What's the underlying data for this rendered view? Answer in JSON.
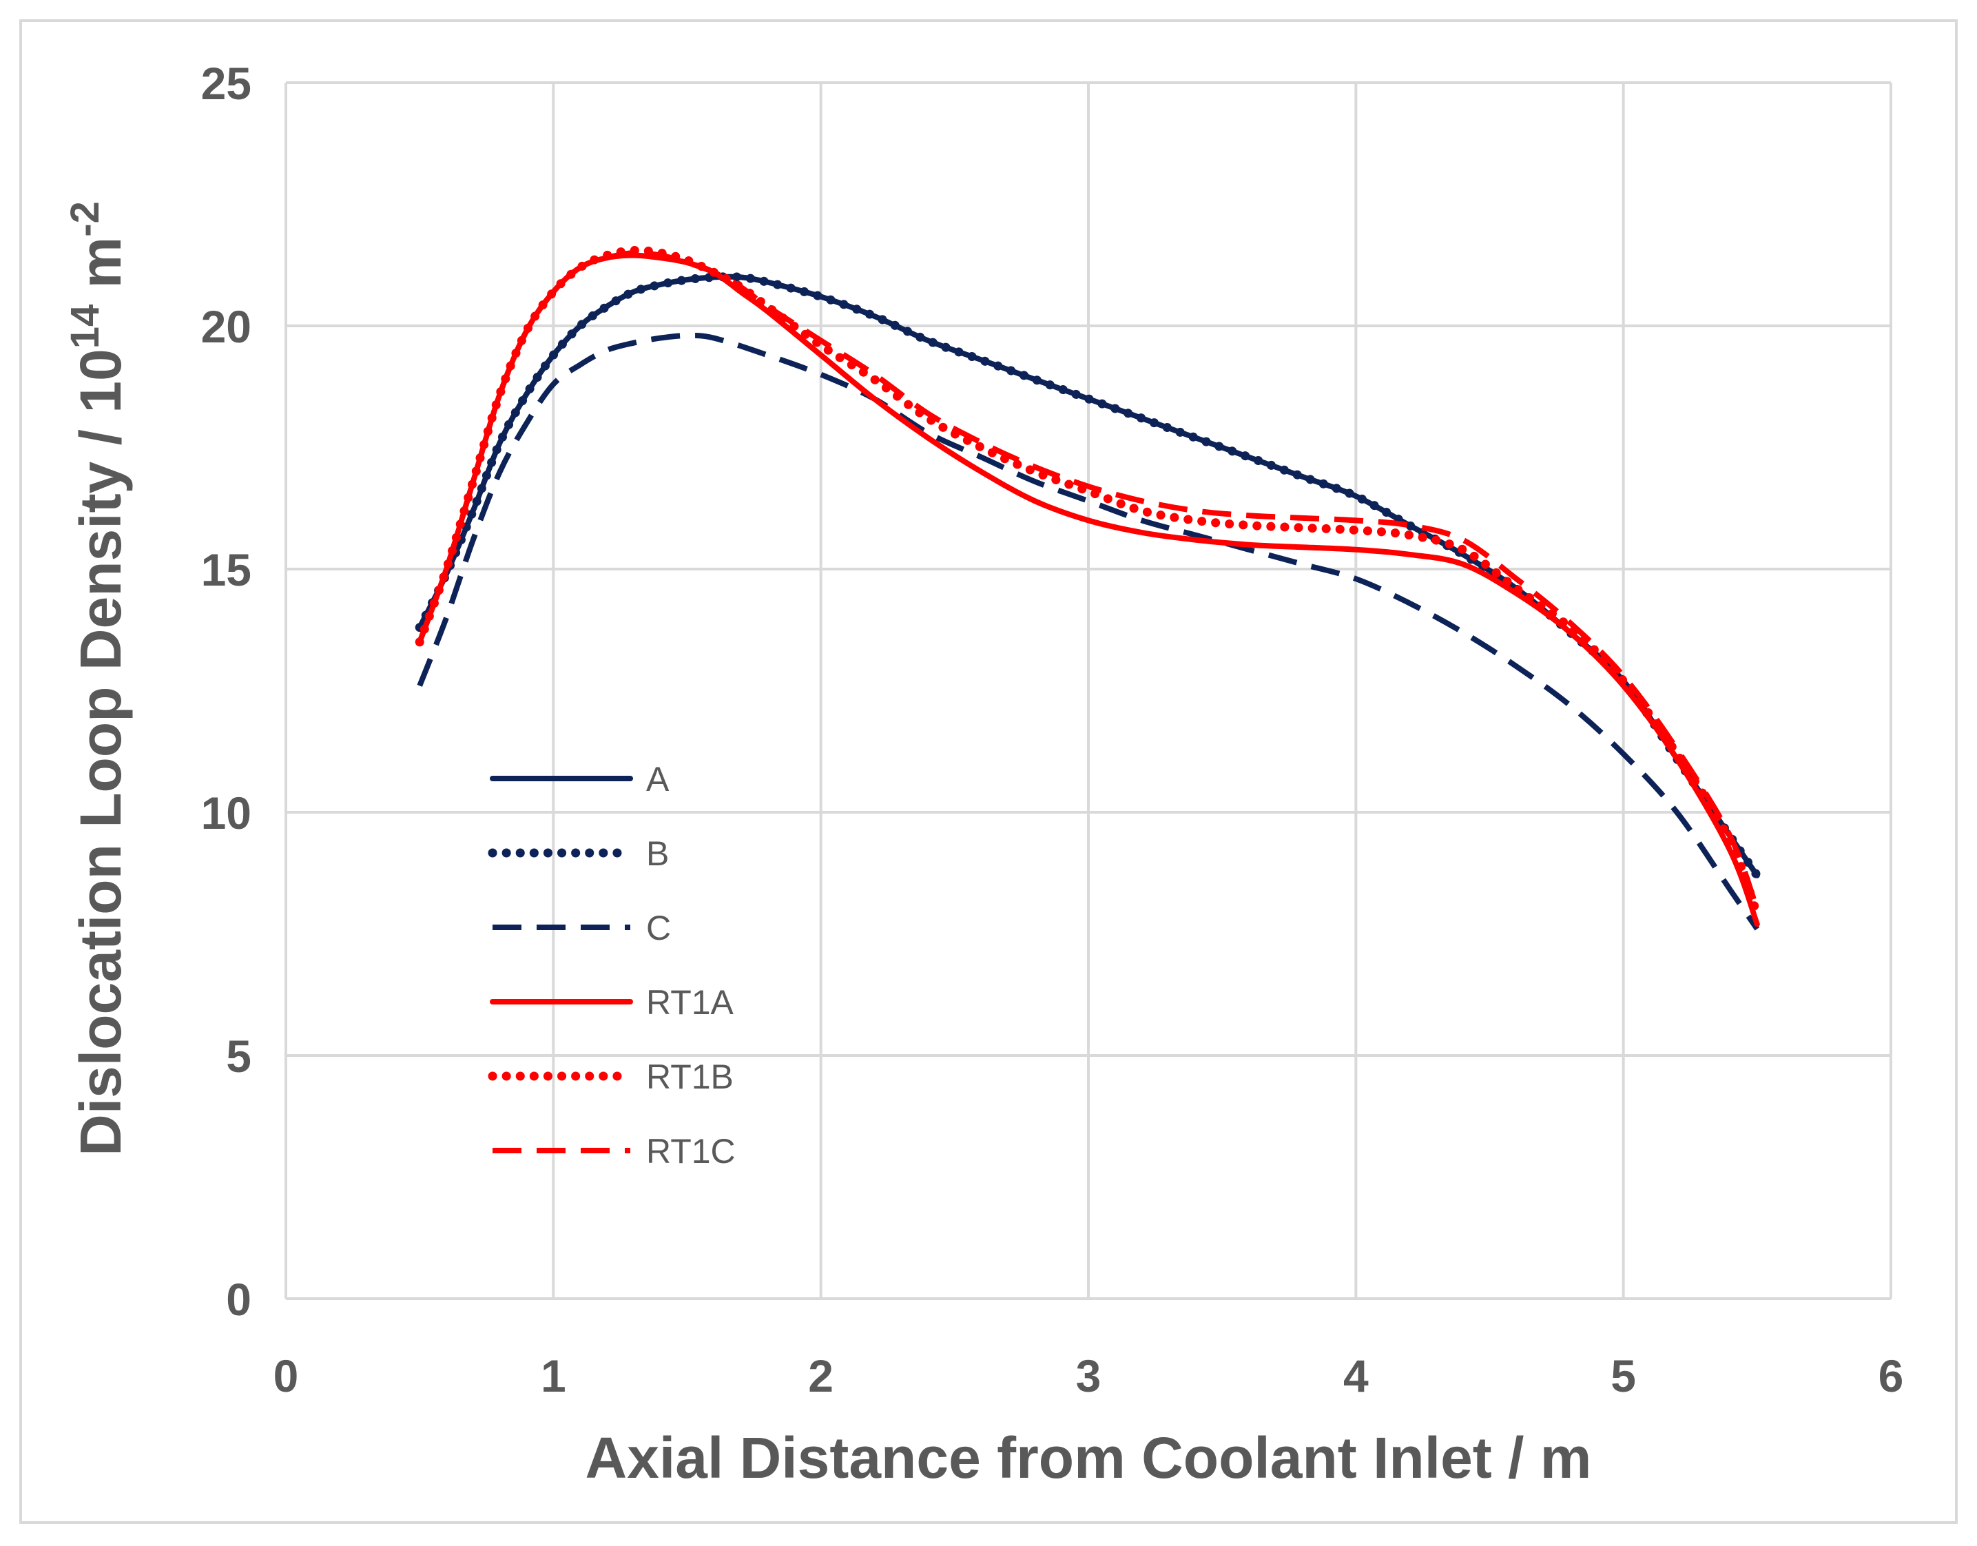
{
  "chart_data": {
    "type": "line",
    "title": "",
    "xlabel": "Axial Distance from Coolant Inlet / m",
    "ylabel": {
      "main": "Dislocation Loop Density / 10",
      "exp1": "14",
      "mid": " m",
      "exp2": "-2"
    },
    "xlim": [
      0,
      6
    ],
    "ylim": [
      0,
      25
    ],
    "xticks": [
      "0",
      "1",
      "2",
      "3",
      "4",
      "5",
      "6"
    ],
    "yticks": [
      "0",
      "5",
      "10",
      "15",
      "20",
      "25"
    ],
    "grid": true,
    "legend_position": "left-center",
    "series": [
      {
        "name": "A",
        "color": "#0d2257",
        "style": "solid",
        "x": [
          0.5,
          0.6,
          0.7,
          0.8,
          0.9,
          1.0,
          1.1,
          1.2,
          1.3,
          1.4,
          1.5,
          1.6,
          1.7,
          1.8,
          2.0,
          2.2,
          2.4,
          2.6,
          2.8,
          3.0,
          3.2,
          3.4,
          3.6,
          3.8,
          4.0,
          4.2,
          4.4,
          4.6,
          4.8,
          5.0,
          5.2,
          5.4,
          5.5
        ],
        "y": [
          13.8,
          14.9,
          16.2,
          17.6,
          18.6,
          19.4,
          20.0,
          20.4,
          20.7,
          20.85,
          20.95,
          21.0,
          21.0,
          20.9,
          20.6,
          20.2,
          19.7,
          19.3,
          18.9,
          18.5,
          18.1,
          17.7,
          17.3,
          16.9,
          16.5,
          15.9,
          15.3,
          14.6,
          13.7,
          12.7,
          11.1,
          9.5,
          8.7
        ]
      },
      {
        "name": "B",
        "color": "#0d2257",
        "style": "dotted",
        "x": [
          0.5,
          0.6,
          0.7,
          0.8,
          0.9,
          1.0,
          1.1,
          1.2,
          1.3,
          1.4,
          1.5,
          1.6,
          1.7,
          1.8,
          2.0,
          2.2,
          2.4,
          2.6,
          2.8,
          3.0,
          3.2,
          3.4,
          3.6,
          3.8,
          4.0,
          4.2,
          4.4,
          4.6,
          4.8,
          5.0,
          5.2,
          5.4,
          5.5
        ],
        "y": [
          13.8,
          14.9,
          16.2,
          17.6,
          18.6,
          19.4,
          20.0,
          20.4,
          20.7,
          20.85,
          20.95,
          21.0,
          21.0,
          20.9,
          20.6,
          20.2,
          19.7,
          19.3,
          18.9,
          18.5,
          18.1,
          17.7,
          17.3,
          16.9,
          16.5,
          15.9,
          15.3,
          14.6,
          13.7,
          12.7,
          11.1,
          9.5,
          8.7
        ]
      },
      {
        "name": "C",
        "color": "#0d2257",
        "style": "dashed",
        "x": [
          0.5,
          0.6,
          0.7,
          0.8,
          0.9,
          1.0,
          1.1,
          1.2,
          1.3,
          1.4,
          1.5,
          1.6,
          1.8,
          2.0,
          2.2,
          2.4,
          2.6,
          2.8,
          3.0,
          3.2,
          3.4,
          3.6,
          3.8,
          4.0,
          4.2,
          4.4,
          4.6,
          4.8,
          5.0,
          5.2,
          5.4,
          5.5
        ],
        "y": [
          12.6,
          14.0,
          15.6,
          17.0,
          18.0,
          18.8,
          19.2,
          19.5,
          19.65,
          19.75,
          19.8,
          19.75,
          19.4,
          19.0,
          18.5,
          17.8,
          17.3,
          16.8,
          16.4,
          16.0,
          15.7,
          15.4,
          15.1,
          14.8,
          14.3,
          13.7,
          13.0,
          12.2,
          11.2,
          10.0,
          8.4,
          7.6
        ]
      },
      {
        "name": "RT1A",
        "color": "#ff0000",
        "style": "solid",
        "x": [
          0.5,
          0.6,
          0.7,
          0.8,
          0.9,
          1.0,
          1.1,
          1.2,
          1.3,
          1.4,
          1.5,
          1.6,
          1.7,
          1.8,
          2.0,
          2.2,
          2.4,
          2.6,
          2.8,
          3.0,
          3.2,
          3.4,
          3.6,
          3.8,
          4.0,
          4.2,
          4.4,
          4.6,
          4.8,
          5.0,
          5.2,
          5.4,
          5.5
        ],
        "y": [
          13.5,
          15.0,
          16.8,
          18.6,
          19.9,
          20.7,
          21.2,
          21.4,
          21.45,
          21.4,
          21.3,
          21.1,
          20.7,
          20.3,
          19.4,
          18.5,
          17.7,
          17.0,
          16.4,
          16.0,
          15.75,
          15.6,
          15.5,
          15.45,
          15.4,
          15.3,
          15.1,
          14.5,
          13.7,
          12.6,
          11.1,
          9.2,
          7.7
        ]
      },
      {
        "name": "RT1B",
        "color": "#ff0000",
        "style": "dotted",
        "x": [
          0.5,
          0.6,
          0.7,
          0.8,
          0.9,
          1.0,
          1.1,
          1.2,
          1.3,
          1.4,
          1.5,
          1.6,
          1.7,
          1.8,
          2.0,
          2.2,
          2.4,
          2.6,
          2.8,
          3.0,
          3.2,
          3.4,
          3.6,
          3.8,
          4.0,
          4.2,
          4.4,
          4.6,
          4.8,
          5.0,
          5.2,
          5.4,
          5.5
        ],
        "y": [
          13.5,
          15.0,
          16.8,
          18.6,
          19.9,
          20.7,
          21.2,
          21.45,
          21.55,
          21.5,
          21.35,
          21.1,
          20.8,
          20.4,
          19.6,
          18.9,
          18.1,
          17.5,
          17.0,
          16.6,
          16.2,
          16.0,
          15.9,
          15.85,
          15.8,
          15.7,
          15.4,
          14.6,
          13.8,
          12.7,
          11.2,
          9.4,
          7.9
        ]
      },
      {
        "name": "RT1C",
        "color": "#ff0000",
        "style": "dashed",
        "x": [
          0.5,
          0.6,
          0.7,
          0.8,
          0.9,
          1.0,
          1.1,
          1.2,
          1.3,
          1.4,
          1.5,
          1.6,
          1.7,
          1.8,
          2.0,
          2.2,
          2.4,
          2.6,
          2.8,
          3.0,
          3.2,
          3.4,
          3.6,
          3.8,
          4.0,
          4.2,
          4.4,
          4.6,
          4.8,
          5.0,
          5.2,
          5.4,
          5.5
        ],
        "y": [
          13.5,
          15.0,
          16.8,
          18.6,
          19.9,
          20.7,
          21.2,
          21.4,
          21.5,
          21.45,
          21.3,
          21.1,
          20.8,
          20.4,
          19.7,
          19.0,
          18.2,
          17.6,
          17.1,
          16.7,
          16.4,
          16.2,
          16.1,
          16.05,
          16.0,
          15.9,
          15.6,
          14.8,
          13.9,
          12.8,
          11.3,
          9.5,
          8.0
        ]
      }
    ]
  }
}
